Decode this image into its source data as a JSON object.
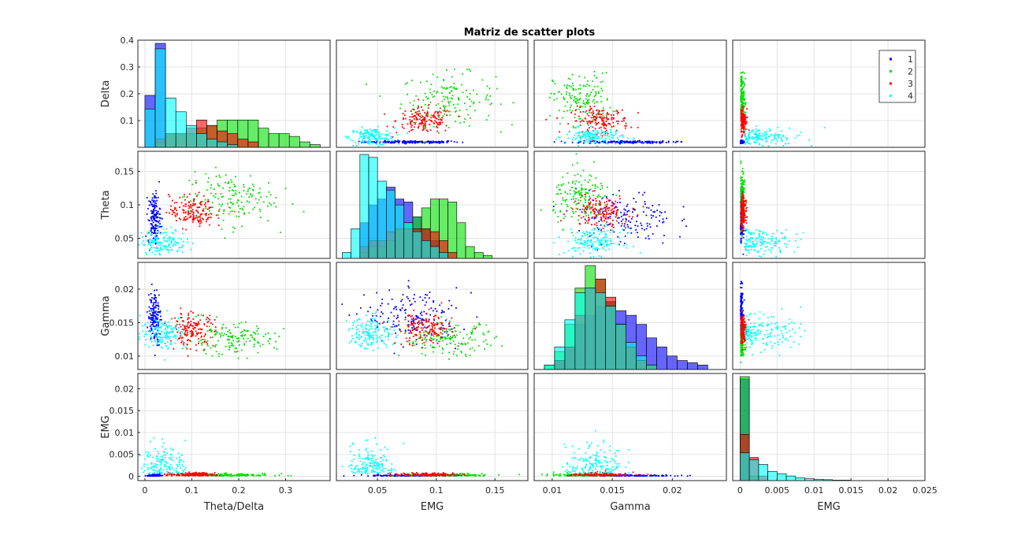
{
  "title": "Matriz de scatter plots",
  "chart_data": {
    "type": "scatter",
    "title": "Matriz de scatter plots",
    "variables": [
      "Delta",
      "Theta",
      "Gamma",
      "EMG"
    ],
    "row_labels": [
      "Delta",
      "Theta",
      "Gamma",
      "EMG"
    ],
    "col_labels": [
      "Theta/Delta",
      "EMG",
      "Gamma",
      "EMG"
    ],
    "legend": {
      "placement": "top-right",
      "entries": [
        "1",
        "2",
        "3",
        "4"
      ]
    },
    "grid": true,
    "diagonal": "histogram",
    "row_ranges": [
      [
        0,
        0.4
      ],
      [
        0.02,
        0.18
      ],
      [
        0.008,
        0.024
      ],
      [
        -0.001,
        0.0235
      ]
    ],
    "col_ranges": [
      [
        -0.015,
        0.395
      ],
      [
        0.015,
        0.178
      ],
      [
        0.0085,
        0.0245
      ],
      [
        -0.001,
        0.025
      ]
    ],
    "row_ticks": [
      {
        "values": [
          0.1,
          0.2,
          0.3,
          0.4
        ],
        "labels": [
          "0.1",
          "0.2",
          "0.3",
          "0.4"
        ]
      },
      {
        "values": [
          0.05,
          0.1,
          0.15
        ],
        "labels": [
          "0.05",
          "0.1",
          "0.15"
        ]
      },
      {
        "values": [
          0.01,
          0.015,
          0.02
        ],
        "labels": [
          "0.01",
          "0.015",
          "0.02"
        ]
      },
      {
        "values": [
          0,
          0.005,
          0.01,
          0.015,
          0.02
        ],
        "labels": [
          "0",
          "0.005",
          "0.01",
          "0.015",
          "0.02"
        ]
      }
    ],
    "col_ticks": [
      {
        "values": [
          0,
          0.1,
          0.2,
          0.3
        ],
        "labels": [
          "0",
          "0.1",
          "0.2",
          "0.3"
        ]
      },
      {
        "values": [
          0.05,
          0.1,
          0.15
        ],
        "labels": [
          "0.05",
          "0.1",
          "0.15"
        ]
      },
      {
        "values": [
          0.01,
          0.015,
          0.02
        ],
        "labels": [
          "0.01",
          "0.015",
          "0.02"
        ]
      },
      {
        "values": [
          0,
          0.005,
          0.01,
          0.015,
          0.02,
          0.025
        ],
        "labels": [
          "0",
          "0.005",
          "0.01",
          "0.015",
          "0.02",
          "0.025"
        ]
      }
    ],
    "series": [
      {
        "name": "1",
        "color": "#0000ff",
        "center": {
          "Delta": 0.02,
          "Theta": 0.08,
          "Gamma": 0.016,
          "EMG": 0.0003,
          "ThetaDelta": 0.02
        },
        "spread": {
          "Delta": 0.003,
          "Theta": 0.025,
          "Gamma": 0.0025,
          "EMG": 0.0002,
          "ThetaDelta": 0.008
        }
      },
      {
        "name": "2",
        "color": "#00e000",
        "center": {
          "Delta": 0.18,
          "Theta": 0.11,
          "Gamma": 0.0125,
          "EMG": 0.0004,
          "ThetaDelta": 0.18
        },
        "spread": {
          "Delta": 0.06,
          "Theta": 0.025,
          "Gamma": 0.0015,
          "EMG": 0.0003,
          "ThetaDelta": 0.06
        }
      },
      {
        "name": "3",
        "color": "#ff0000",
        "center": {
          "Delta": 0.1,
          "Theta": 0.09,
          "Gamma": 0.014,
          "EMG": 0.0006,
          "ThetaDelta": 0.1
        },
        "spread": {
          "Delta": 0.03,
          "Theta": 0.015,
          "Gamma": 0.0015,
          "EMG": 0.0004,
          "ThetaDelta": 0.03
        }
      },
      {
        "name": "4",
        "color": "#00ffff",
        "center": {
          "Delta": 0.04,
          "Theta": 0.045,
          "Gamma": 0.0135,
          "EMG": 0.003,
          "ThetaDelta": 0.04
        },
        "spread": {
          "Delta": 0.02,
          "Theta": 0.012,
          "Gamma": 0.0015,
          "EMG": 0.004,
          "ThetaDelta": 0.03
        }
      }
    ],
    "histograms": {
      "Delta": {
        "bin_start": 0.0,
        "bin_width": 0.022,
        "counts": {
          "1": [
            0.19,
            0.38,
            0,
            0,
            0,
            0,
            0,
            0,
            0,
            0,
            0,
            0,
            0,
            0,
            0,
            0,
            0,
            0
          ],
          "2": [
            0,
            0.02,
            0.05,
            0.05,
            0.05,
            0.07,
            0.08,
            0.1,
            0.1,
            0.1,
            0.1,
            0.07,
            0.05,
            0.05,
            0.04,
            0.02,
            0.01,
            0.0
          ],
          "3": [
            0,
            0.03,
            0.05,
            0.05,
            0.07,
            0.1,
            0.08,
            0.06,
            0.05,
            0.03,
            0.02,
            0,
            0,
            0,
            0,
            0,
            0,
            0
          ],
          "4": [
            0.14,
            0.36,
            0.18,
            0.13,
            0.08,
            0.05,
            0.03,
            0.02,
            0.01,
            0,
            0,
            0,
            0,
            0,
            0,
            0,
            0,
            0
          ]
        }
      },
      "Theta": {
        "bin_start": 0.02,
        "bin_width": 0.0075,
        "counts": {
          "1": [
            0,
            0,
            0.06,
            0.09,
            0.1,
            0.12,
            0.1,
            0.095,
            0.07,
            0.05,
            0.03,
            0.01,
            0,
            0,
            0,
            0,
            0
          ],
          "2": [
            0,
            0,
            0.01,
            0.02,
            0.02,
            0.03,
            0.05,
            0.06,
            0.07,
            0.085,
            0.1,
            0.1,
            0.095,
            0.06,
            0.02,
            0.01,
            0.005
          ],
          "3": [
            0,
            0,
            0.02,
            0.03,
            0.03,
            0.045,
            0.05,
            0.05,
            0.05,
            0.05,
            0.045,
            0.03,
            0.01,
            0,
            0,
            0,
            0
          ],
          "4": [
            0.01,
            0.05,
            0.175,
            0.17,
            0.13,
            0.115,
            0.09,
            0.06,
            0.045,
            0.03,
            0.02,
            0.01,
            0,
            0,
            0,
            0,
            0
          ]
        }
      },
      "Gamma": {
        "bin_start": 0.0085,
        "bin_width": 0.00085,
        "counts": {
          "1": [
            0,
            0,
            0.02,
            0.05,
            0.1,
            0.12,
            0.14,
            0.15,
            0.13,
            0.12,
            0.1,
            0.07,
            0.05,
            0.03,
            0.02,
            0.015,
            0.01
          ],
          "2": [
            0,
            0.01,
            0.04,
            0.1,
            0.18,
            0.23,
            0.2,
            0.15,
            0.1,
            0.05,
            0.02,
            0.01,
            0,
            0,
            0,
            0,
            0
          ],
          "3": [
            0,
            0,
            0.02,
            0.05,
            0.12,
            0.18,
            0.2,
            0.16,
            0.1,
            0.05,
            0.02,
            0.01,
            0,
            0,
            0,
            0,
            0
          ],
          "4": [
            0,
            0.01,
            0.05,
            0.11,
            0.17,
            0.18,
            0.17,
            0.14,
            0.1,
            0.06,
            0.03,
            0.01,
            0,
            0,
            0,
            0,
            0
          ]
        }
      },
      "EMG": {
        "bin_start": 0.0,
        "bin_width": 0.00125,
        "counts": {
          "1": [
            0.22,
            0,
            0,
            0,
            0,
            0,
            0,
            0,
            0,
            0,
            0,
            0,
            0,
            0,
            0,
            0,
            0,
            0,
            0
          ],
          "2": [
            0.225,
            0.01,
            0,
            0,
            0,
            0,
            0,
            0,
            0,
            0,
            0,
            0,
            0,
            0,
            0,
            0,
            0,
            0,
            0
          ],
          "3": [
            0.1,
            0.05,
            0.01,
            0,
            0,
            0,
            0,
            0,
            0,
            0,
            0,
            0,
            0,
            0,
            0,
            0,
            0,
            0,
            0
          ],
          "4": [
            0.06,
            0.045,
            0.035,
            0.02,
            0.015,
            0.01,
            0.006,
            0.004,
            0.003,
            0.002,
            0.001,
            0.001,
            0,
            0,
            0,
            0,
            0,
            0,
            0
          ]
        }
      }
    }
  }
}
